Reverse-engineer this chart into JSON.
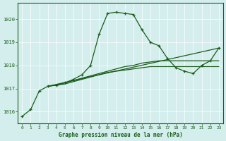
{
  "title": "Graphe pression niveau de la mer (hPa)",
  "bg_color": "#d4eeed",
  "line_color": "#1a5c1a",
  "grid_color": "#b8d8d8",
  "xlim": [
    -0.5,
    23.5
  ],
  "ylim": [
    1015.5,
    1020.7
  ],
  "yticks": [
    1016,
    1017,
    1018,
    1019,
    1020
  ],
  "xticks": [
    0,
    1,
    2,
    3,
    4,
    5,
    6,
    7,
    8,
    9,
    10,
    11,
    12,
    13,
    14,
    15,
    16,
    17,
    18,
    19,
    20,
    21,
    22,
    23
  ],
  "series1": [
    [
      0,
      1015.8
    ],
    [
      1,
      1016.1
    ],
    [
      2,
      1016.9
    ],
    [
      3,
      1017.1
    ],
    [
      4,
      1017.15
    ],
    [
      5,
      1017.25
    ],
    [
      6,
      1017.4
    ],
    [
      7,
      1017.6
    ],
    [
      8,
      1018.0
    ],
    [
      9,
      1019.35
    ],
    [
      10,
      1020.25
    ],
    [
      11,
      1020.3
    ],
    [
      12,
      1020.25
    ],
    [
      13,
      1020.2
    ],
    [
      14,
      1019.55
    ],
    [
      15,
      1019.0
    ],
    [
      16,
      1018.85
    ],
    [
      17,
      1018.3
    ],
    [
      18,
      1017.9
    ],
    [
      19,
      1017.75
    ],
    [
      20,
      1017.65
    ],
    [
      21,
      1018.0
    ],
    [
      22,
      1018.2
    ],
    [
      23,
      1018.75
    ]
  ],
  "series2": [
    [
      3,
      1017.1
    ],
    [
      4,
      1017.15
    ],
    [
      5,
      1017.2
    ],
    [
      6,
      1017.3
    ],
    [
      7,
      1017.4
    ],
    [
      8,
      1017.5
    ],
    [
      9,
      1017.6
    ],
    [
      10,
      1017.7
    ],
    [
      11,
      1017.75
    ],
    [
      12,
      1017.8
    ],
    [
      13,
      1017.85
    ],
    [
      14,
      1017.9
    ],
    [
      15,
      1017.95
    ],
    [
      16,
      1017.95
    ],
    [
      17,
      1017.95
    ],
    [
      18,
      1017.95
    ],
    [
      19,
      1017.95
    ],
    [
      20,
      1017.95
    ],
    [
      21,
      1017.95
    ],
    [
      22,
      1017.95
    ],
    [
      23,
      1017.95
    ]
  ],
  "series3": [
    [
      3,
      1017.1
    ],
    [
      4,
      1017.15
    ],
    [
      5,
      1017.25
    ],
    [
      6,
      1017.35
    ],
    [
      7,
      1017.45
    ],
    [
      8,
      1017.55
    ],
    [
      9,
      1017.65
    ],
    [
      10,
      1017.75
    ],
    [
      11,
      1017.85
    ],
    [
      12,
      1017.95
    ],
    [
      13,
      1018.0
    ],
    [
      14,
      1018.1
    ],
    [
      15,
      1018.15
    ],
    [
      16,
      1018.2
    ],
    [
      17,
      1018.2
    ],
    [
      18,
      1018.2
    ],
    [
      19,
      1018.2
    ],
    [
      20,
      1018.2
    ],
    [
      21,
      1018.2
    ],
    [
      22,
      1018.2
    ],
    [
      23,
      1018.2
    ]
  ],
  "series4_straight": [
    [
      3,
      1017.1
    ],
    [
      23,
      1018.75
    ]
  ]
}
